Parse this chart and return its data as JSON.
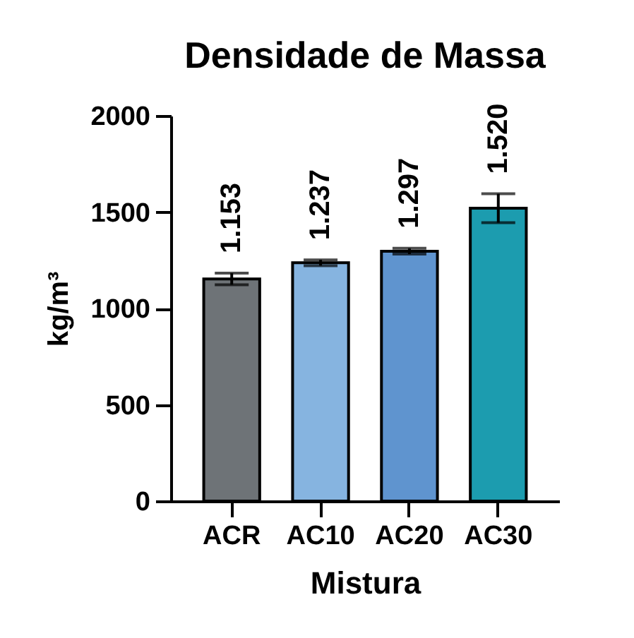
{
  "chart_data": {
    "type": "bar",
    "title": "Densidade de Massa",
    "xlabel": "Mistura",
    "ylabel": "kg/m³",
    "categories": [
      "ACR",
      "AC10",
      "AC20",
      "AC30"
    ],
    "values": [
      1153,
      1237,
      1297,
      1520
    ],
    "colors": [
      "#6e7377",
      "#86b4e0",
      "#5f94cf",
      "#1c9caf"
    ],
    "errors": [
      30,
      15,
      15,
      75
    ],
    "value_labels": [
      "1.153",
      "1.237",
      "1.297",
      "1.520"
    ],
    "ylim": [
      0,
      2000
    ],
    "yticks": [
      0,
      500,
      1000,
      1500,
      2000
    ],
    "grid": false,
    "legend": false
  }
}
